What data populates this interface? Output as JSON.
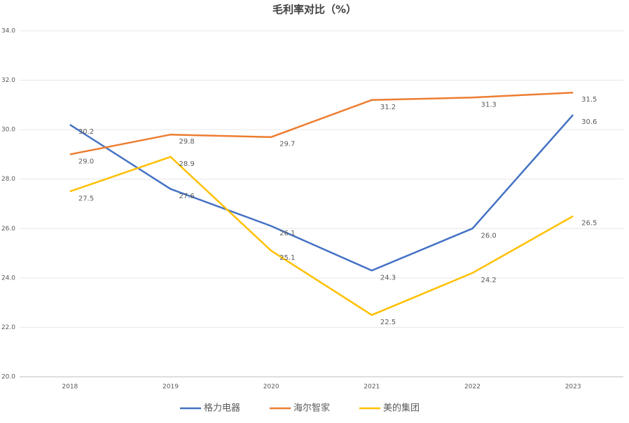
{
  "chart_data": {
    "type": "line",
    "title": "毛利率对比（%）",
    "categories": [
      "2018",
      "2019",
      "2020",
      "2021",
      "2022",
      "2023"
    ],
    "series": [
      {
        "name": "格力电器",
        "color": "#4472c4",
        "values": [
          30.2,
          27.6,
          26.1,
          24.3,
          26.0,
          30.6
        ],
        "value_labels": [
          "30.2",
          "27.6",
          "26.1",
          "24.3",
          "26.0",
          "30.6"
        ]
      },
      {
        "name": "海尔智家",
        "color": "#ed7d31",
        "values": [
          29.0,
          29.8,
          29.7,
          31.2,
          31.3,
          31.5
        ],
        "value_labels": [
          "29.0",
          "29.8",
          "29.7",
          "31.2",
          "31.3",
          "31.5"
        ]
      },
      {
        "name": "美的集团",
        "color": "#ffc000",
        "values": [
          27.5,
          28.9,
          25.1,
          22.5,
          24.2,
          26.5
        ],
        "value_labels": [
          "27.5",
          "28.9",
          "25.1",
          "22.5",
          "24.2",
          "26.5"
        ]
      }
    ],
    "ylim": [
      20,
      34
    ],
    "yticks": [
      {
        "value": 20,
        "label": "20.0"
      },
      {
        "value": 22,
        "label": "22.0"
      },
      {
        "value": 24,
        "label": "24.0"
      },
      {
        "value": 26,
        "label": "26.0"
      },
      {
        "value": 28,
        "label": "28.0"
      },
      {
        "value": 30,
        "label": "30.0"
      },
      {
        "value": 32,
        "label": "32.0"
      },
      {
        "value": 34,
        "label": "34.0"
      }
    ],
    "grid": true,
    "legend": "bottom"
  }
}
